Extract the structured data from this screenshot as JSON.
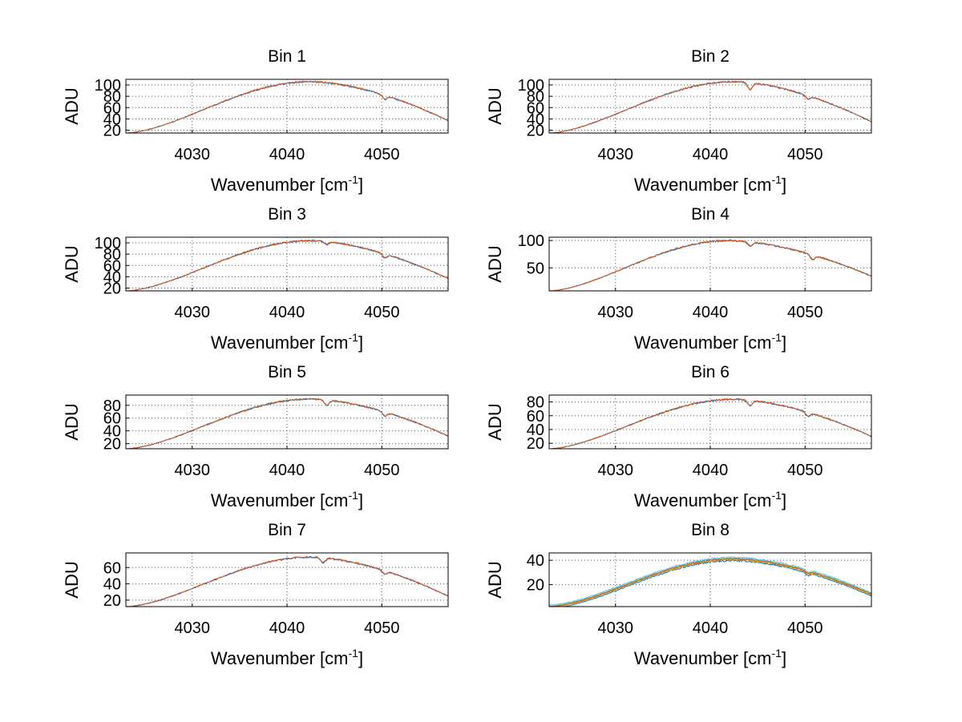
{
  "colors": {
    "background": "#ffffff",
    "axis": "#000000",
    "grid": "#555555",
    "series_top": "#d95319",
    "series_under": [
      "#0072bd",
      "#edb120",
      "#77ac30",
      "#4dbeee"
    ]
  },
  "chart_data": [
    {
      "type": "line",
      "title": "Bin 1",
      "xlabel": "Wavenumber [cm",
      "xlabel_sup": "-1",
      "xlabel_end": "]",
      "ylabel": "ADU",
      "xlim": [
        4023,
        4057
      ],
      "ylim": [
        15,
        110
      ],
      "xticks": [
        4030,
        4040,
        4050
      ],
      "yticks": [
        20,
        40,
        60,
        80,
        100
      ],
      "shape": {
        "peak_x": 4042.5,
        "peak_y": 106,
        "left_y": 15,
        "right_y": 37,
        "dips": [
          [
            4050.3,
            7
          ]
        ]
      }
    },
    {
      "type": "line",
      "title": "Bin 2",
      "xlabel": "Wavenumber [cm",
      "xlabel_sup": "-1",
      "xlabel_end": "]",
      "ylabel": "ADU",
      "xlim": [
        4023,
        4057
      ],
      "ylim": [
        15,
        110
      ],
      "xticks": [
        4030,
        4040,
        4050
      ],
      "yticks": [
        20,
        40,
        60,
        80,
        100
      ],
      "shape": {
        "peak_x": 4042.5,
        "peak_y": 106,
        "left_y": 15,
        "right_y": 35,
        "dips": [
          [
            4044.2,
            12
          ],
          [
            4050.3,
            6
          ]
        ]
      }
    },
    {
      "type": "line",
      "title": "Bin 3",
      "xlabel": "Wavenumber [cm",
      "xlabel_sup": "-1",
      "xlabel_end": "]",
      "ylabel": "ADU",
      "xlim": [
        4023,
        4057
      ],
      "ylim": [
        15,
        110
      ],
      "xticks": [
        4030,
        4040,
        4050
      ],
      "yticks": [
        20,
        40,
        60,
        80,
        100
      ],
      "shape": {
        "peak_x": 4042.5,
        "peak_y": 104,
        "left_y": 15,
        "right_y": 37,
        "dips": [
          [
            4044.2,
            5
          ],
          [
            4050.3,
            7
          ]
        ]
      }
    },
    {
      "type": "line",
      "title": "Bin 4",
      "xlabel": "Wavenumber [cm",
      "xlabel_sup": "-1",
      "xlabel_end": "]",
      "ylabel": "ADU",
      "xlim": [
        4023,
        4057
      ],
      "ylim": [
        8,
        106
      ],
      "xticks": [
        4030,
        4040,
        4050
      ],
      "yticks": [
        50,
        100
      ],
      "shape": {
        "peak_x": 4042,
        "peak_y": 100,
        "left_y": 8,
        "right_y": 35,
        "dips": [
          [
            4044.2,
            7
          ],
          [
            4050.8,
            8
          ]
        ]
      }
    },
    {
      "type": "line",
      "title": "Bin 5",
      "xlabel": "Wavenumber [cm",
      "xlabel_sup": "-1",
      "xlabel_end": "]",
      "ylabel": "ADU",
      "xlim": [
        4023,
        4057
      ],
      "ylim": [
        12,
        96
      ],
      "xticks": [
        4030,
        4040,
        4050
      ],
      "yticks": [
        20,
        40,
        60,
        80
      ],
      "shape": {
        "peak_x": 4042.5,
        "peak_y": 90,
        "left_y": 12,
        "right_y": 32,
        "dips": [
          [
            4044.2,
            8
          ],
          [
            4050.3,
            6
          ]
        ]
      }
    },
    {
      "type": "line",
      "title": "Bin 6",
      "xlabel": "Wavenumber [cm",
      "xlabel_sup": "-1",
      "xlabel_end": "]",
      "ylabel": "ADU",
      "xlim": [
        4023,
        4057
      ],
      "ylim": [
        12,
        90
      ],
      "xticks": [
        4030,
        4040,
        4050
      ],
      "yticks": [
        20,
        40,
        60,
        80
      ],
      "shape": {
        "peak_x": 4042.5,
        "peak_y": 84,
        "left_y": 12,
        "right_y": 30,
        "dips": [
          [
            4044.2,
            8
          ],
          [
            4050.3,
            6
          ]
        ]
      }
    },
    {
      "type": "line",
      "title": "Bin 7",
      "xlabel": "Wavenumber [cm",
      "xlabel_sup": "-1",
      "xlabel_end": "]",
      "ylabel": "ADU",
      "xlim": [
        4023,
        4057
      ],
      "ylim": [
        12,
        78
      ],
      "xticks": [
        4030,
        4040,
        4050
      ],
      "yticks": [
        20,
        40,
        60
      ],
      "shape": {
        "peak_x": 4042.5,
        "peak_y": 73,
        "left_y": 12,
        "right_y": 25,
        "dips": [
          [
            4043.8,
            6
          ],
          [
            4050.3,
            4
          ]
        ]
      }
    },
    {
      "type": "line",
      "title": "Bin 8",
      "xlabel": "Wavenumber [cm",
      "xlabel_sup": "-1",
      "xlabel_end": "]",
      "ylabel": "ADU",
      "xlim": [
        4023,
        4057
      ],
      "ylim": [
        2,
        46
      ],
      "xticks": [
        4030,
        4040,
        4050
      ],
      "yticks": [
        20,
        40
      ],
      "shape": {
        "peak_x": 4042.5,
        "peak_y": 41,
        "left_y": 2,
        "right_y": 12,
        "dips": [
          [
            4050.3,
            2
          ]
        ]
      }
    }
  ]
}
